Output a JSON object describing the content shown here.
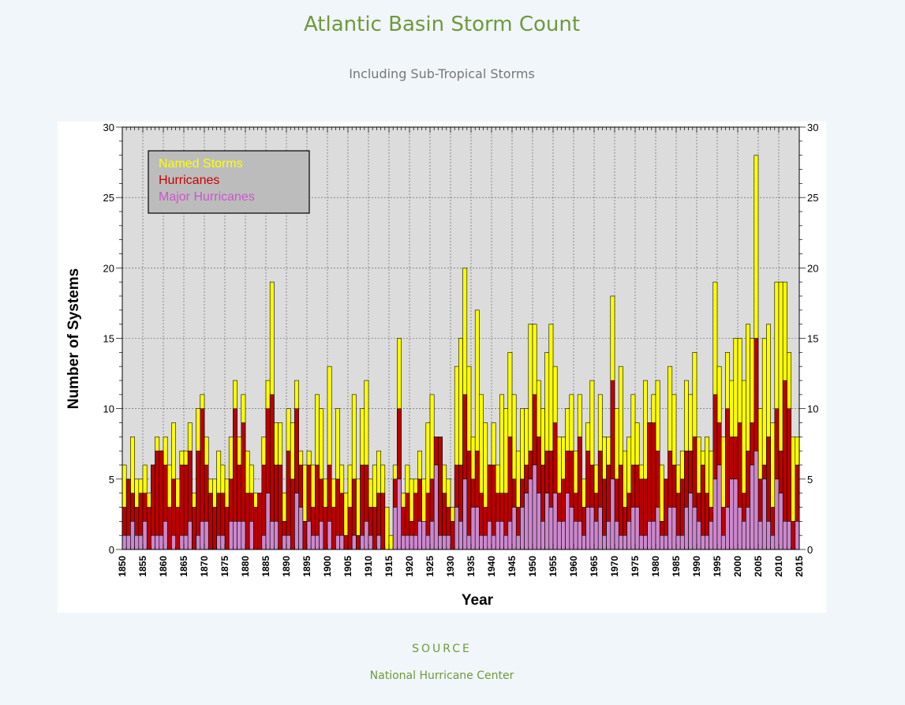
{
  "header": {
    "title": "Atlantic Basin Storm Count",
    "subtitle": "Including Sub-Tropical Storms"
  },
  "footer": {
    "source_label": "SOURCE",
    "source_value": "National Hurricane Center"
  },
  "colors": {
    "named": "#ffff00",
    "hurricanes": "#bb0000",
    "major": "#cc88cc",
    "plot_bg": "#dcdcdc",
    "legend_bg": "#bcbcbc"
  },
  "chart_data": {
    "type": "bar",
    "title": "",
    "xlabel": "Year",
    "ylabel": "Number of Systems",
    "ylim": [
      0,
      30
    ],
    "yticks": [
      0,
      5,
      10,
      15,
      20,
      25,
      30
    ],
    "xticks": [
      1850,
      1855,
      1860,
      1865,
      1870,
      1875,
      1880,
      1885,
      1890,
      1895,
      1900,
      1905,
      1910,
      1915,
      1920,
      1925,
      1930,
      1935,
      1940,
      1945,
      1950,
      1955,
      1960,
      1965,
      1970,
      1975,
      1980,
      1985,
      1990,
      1995,
      2000,
      2005,
      2010,
      2015
    ],
    "grid": true,
    "legend_position": "top-left",
    "x_start": 1851,
    "x_end": 2015,
    "series": [
      {
        "name": "Named Storms",
        "values": [
          6,
          5,
          8,
          5,
          5,
          6,
          4,
          6,
          8,
          7,
          8,
          6,
          9,
          5,
          7,
          7,
          9,
          4,
          10,
          11,
          8,
          5,
          5,
          7,
          6,
          5,
          8,
          12,
          8,
          11,
          7,
          6,
          4,
          4,
          8,
          12,
          19,
          9,
          9,
          4,
          10,
          9,
          12,
          7,
          6,
          7,
          6,
          11,
          10,
          5,
          13,
          5,
          10,
          6,
          4,
          6,
          11,
          5,
          10,
          12,
          5,
          6,
          7,
          6,
          3,
          1,
          6,
          15,
          4,
          6,
          5,
          5,
          7,
          5,
          9,
          11,
          8,
          8,
          6,
          5,
          3,
          13,
          15,
          20,
          13,
          8,
          17,
          11,
          9,
          6,
          9,
          6,
          11,
          10,
          14,
          11,
          7,
          10,
          10,
          16,
          16,
          12,
          10,
          14,
          16,
          13,
          8,
          8,
          10,
          11,
          7,
          11,
          5,
          9,
          12,
          6,
          11,
          8,
          8,
          18,
          10,
          13,
          7,
          8,
          11,
          9,
          6,
          12,
          9,
          11,
          12,
          6,
          4,
          13,
          11,
          6,
          7,
          12,
          11,
          14,
          8,
          7,
          8,
          7,
          19,
          13,
          8,
          14,
          12,
          15,
          15,
          12,
          16,
          15,
          28,
          10,
          15,
          16,
          9,
          19,
          19,
          19,
          14,
          8,
          8
        ],
        "color_key": "named"
      },
      {
        "name": "Hurricanes",
        "values": [
          3,
          5,
          4,
          3,
          4,
          4,
          3,
          6,
          7,
          7,
          6,
          3,
          5,
          3,
          6,
          6,
          7,
          3,
          7,
          10,
          6,
          4,
          3,
          4,
          4,
          3,
          5,
          10,
          6,
          9,
          4,
          4,
          3,
          4,
          6,
          10,
          11,
          6,
          6,
          2,
          7,
          5,
          10,
          6,
          2,
          6,
          3,
          6,
          5,
          3,
          6,
          3,
          5,
          4,
          1,
          3,
          5,
          1,
          6,
          6,
          3,
          3,
          4,
          4,
          0,
          0,
          5,
          10,
          3,
          4,
          2,
          4,
          5,
          2,
          4,
          5,
          8,
          8,
          4,
          3,
          2,
          6,
          6,
          11,
          7,
          5,
          7,
          4,
          3,
          6,
          6,
          4,
          4,
          4,
          8,
          5,
          3,
          5,
          6,
          7,
          11,
          8,
          6,
          7,
          7,
          9,
          4,
          5,
          7,
          7,
          4,
          8,
          3,
          7,
          6,
          4,
          7,
          5,
          6,
          12,
          5,
          6,
          3,
          4,
          6,
          6,
          5,
          5,
          9,
          9,
          7,
          2,
          5,
          7,
          6,
          4,
          5,
          7,
          7,
          8,
          4,
          6,
          4,
          3,
          11,
          9,
          3,
          10,
          8,
          8,
          9,
          4,
          7,
          9,
          15,
          5,
          6,
          8,
          3,
          10,
          7,
          12,
          10,
          2,
          6
        ],
        "color_key": "hurricanes"
      },
      {
        "name": "Major Hurricanes",
        "values": [
          1,
          1,
          2,
          1,
          1,
          2,
          0,
          1,
          1,
          1,
          2,
          0,
          1,
          0,
          1,
          1,
          2,
          0,
          1,
          2,
          2,
          0,
          0,
          1,
          1,
          0,
          2,
          2,
          2,
          2,
          0,
          2,
          0,
          0,
          1,
          4,
          2,
          2,
          0,
          1,
          1,
          0,
          4,
          3,
          0,
          2,
          1,
          1,
          2,
          0,
          2,
          0,
          1,
          1,
          0,
          0,
          1,
          0,
          1,
          2,
          1,
          0,
          1,
          0,
          0,
          0,
          3,
          5,
          1,
          1,
          1,
          1,
          2,
          2,
          1,
          2,
          6,
          1,
          1,
          1,
          0,
          3,
          2,
          5,
          1,
          3,
          3,
          1,
          1,
          2,
          1,
          2,
          2,
          1,
          2,
          3,
          1,
          3,
          4,
          5,
          6,
          4,
          2,
          4,
          3,
          4,
          2,
          2,
          4,
          3,
          2,
          2,
          1,
          3,
          3,
          2,
          3,
          1,
          2,
          5,
          2,
          1,
          1,
          2,
          3,
          3,
          1,
          1,
          2,
          2,
          3,
          1,
          1,
          3,
          3,
          1,
          1,
          3,
          4,
          3,
          2,
          1,
          1,
          2,
          5,
          6,
          1,
          3,
          5,
          5,
          3,
          2,
          3,
          6,
          7,
          2,
          5,
          2,
          1,
          5,
          4,
          2,
          2,
          0,
          2
        ],
        "color_key": "major"
      }
    ]
  }
}
